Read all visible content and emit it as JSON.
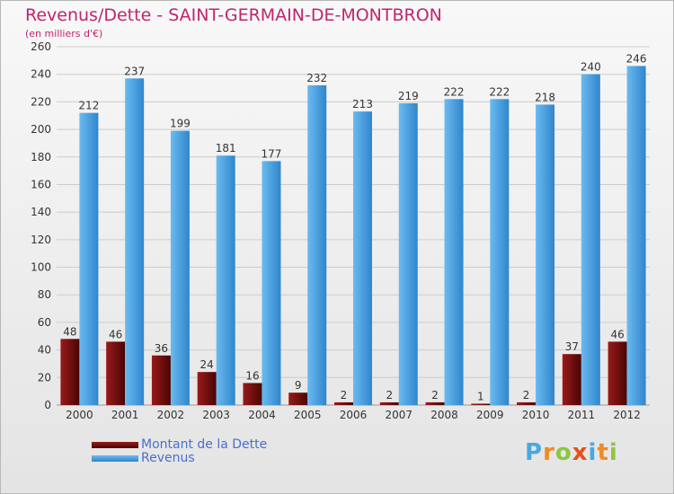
{
  "chart_data": {
    "type": "bar",
    "title": "Revenus/Dette - SAINT-GERMAIN-DE-MONTBRON",
    "subtitle": "(en milliers d'€)",
    "categories": [
      "2000",
      "2001",
      "2002",
      "2003",
      "2004",
      "2005",
      "2006",
      "2007",
      "2008",
      "2009",
      "2010",
      "2011",
      "2012"
    ],
    "series": [
      {
        "name": "Montant de la Dette",
        "color": "#7a0c0c",
        "values": [
          48,
          46,
          36,
          24,
          16,
          9,
          2,
          2,
          2,
          1,
          2,
          37,
          46
        ]
      },
      {
        "name": "Revenus",
        "color": "#3f9fe6",
        "values": [
          212,
          237,
          199,
          181,
          177,
          232,
          213,
          219,
          222,
          222,
          218,
          240,
          246
        ]
      }
    ],
    "ylim": [
      0,
      260
    ],
    "yticks": [
      0,
      20,
      40,
      60,
      80,
      100,
      120,
      140,
      160,
      180,
      200,
      220,
      240,
      260
    ],
    "grid": true,
    "data_labels": true,
    "legend_position": "bottom-left"
  },
  "logo": {
    "letters": [
      "P",
      "r",
      "o",
      "x",
      "i",
      "t",
      "i"
    ],
    "colors": [
      "#4aa8e0",
      "#f08a24",
      "#8cc63f",
      "#e94e1b",
      "#4aa8e0",
      "#f08a24",
      "#8cc63f"
    ]
  }
}
